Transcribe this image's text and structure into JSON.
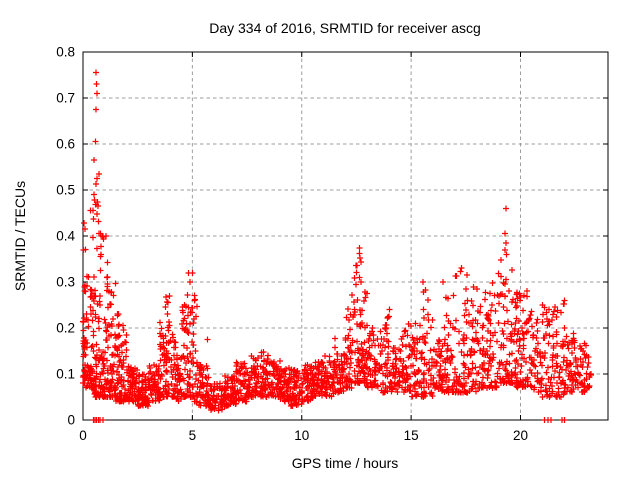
{
  "page": {
    "title": "Day 334 of 2016, SRMTID for receiver ascg"
  },
  "chart_data": {
    "type": "scatter",
    "title": "Day 334 of 2016, SRMTID for receiver ascg",
    "xlabel": "GPS time / hours",
    "ylabel": "SRMTID / TECUs",
    "xlim": [
      0,
      24
    ],
    "ylim": [
      0,
      0.8
    ],
    "xticks": [
      0,
      5,
      10,
      15,
      20
    ],
    "xtick_labels": [
      "0",
      "5",
      "10",
      "15",
      "20"
    ],
    "yticks": [
      0,
      0.1,
      0.2,
      0.3,
      0.4,
      0.5,
      0.6,
      0.7,
      0.8
    ],
    "ytick_labels": [
      "0",
      "0.1",
      "0.2",
      "0.3",
      "0.4",
      "0.5",
      "0.6",
      "0.7",
      "0.8"
    ],
    "grid": "dashed",
    "legend": "none",
    "series_name": "SRMTID",
    "marker": {
      "shape": "plus",
      "color": "#ff0000",
      "size": 7
    },
    "colors": {
      "axis": "#000000",
      "grid": "#9e9e9e",
      "background": "#ffffff",
      "text": "#000000"
    },
    "density_bins": [
      [
        0.0,
        0.12,
        0.08,
        0.43,
        35
      ],
      [
        0.12,
        0.3,
        0.07,
        0.35,
        25
      ],
      [
        0.3,
        0.5,
        0.07,
        0.47,
        40
      ],
      [
        0.5,
        0.75,
        0.05,
        0.48,
        50
      ],
      [
        0.75,
        1.0,
        0.05,
        0.42,
        45
      ],
      [
        1.0,
        1.25,
        0.05,
        0.35,
        40
      ],
      [
        1.25,
        1.5,
        0.05,
        0.3,
        40
      ],
      [
        1.5,
        1.75,
        0.04,
        0.25,
        40
      ],
      [
        1.75,
        2.0,
        0.04,
        0.22,
        35
      ],
      [
        2.0,
        2.5,
        0.04,
        0.12,
        60
      ],
      [
        2.5,
        3.0,
        0.03,
        0.1,
        60
      ],
      [
        3.0,
        3.5,
        0.04,
        0.12,
        55
      ],
      [
        3.5,
        3.75,
        0.05,
        0.22,
        30
      ],
      [
        3.75,
        4.0,
        0.05,
        0.27,
        35
      ],
      [
        4.0,
        4.25,
        0.05,
        0.2,
        30
      ],
      [
        4.25,
        4.5,
        0.04,
        0.15,
        30
      ],
      [
        4.5,
        4.75,
        0.05,
        0.25,
        30
      ],
      [
        4.75,
        5.0,
        0.05,
        0.32,
        35
      ],
      [
        5.0,
        5.25,
        0.04,
        0.28,
        30
      ],
      [
        5.25,
        5.75,
        0.03,
        0.12,
        50
      ],
      [
        5.75,
        6.5,
        0.02,
        0.08,
        70
      ],
      [
        6.5,
        7.0,
        0.03,
        0.1,
        55
      ],
      [
        7.0,
        7.5,
        0.04,
        0.13,
        55
      ],
      [
        7.5,
        8.0,
        0.05,
        0.14,
        55
      ],
      [
        8.0,
        8.5,
        0.05,
        0.15,
        55
      ],
      [
        8.5,
        9.0,
        0.05,
        0.13,
        55
      ],
      [
        9.0,
        9.5,
        0.04,
        0.12,
        55
      ],
      [
        9.5,
        10.0,
        0.03,
        0.11,
        55
      ],
      [
        10.0,
        10.5,
        0.04,
        0.12,
        55
      ],
      [
        10.5,
        11.0,
        0.05,
        0.13,
        55
      ],
      [
        11.0,
        11.5,
        0.05,
        0.15,
        50
      ],
      [
        11.5,
        12.0,
        0.06,
        0.18,
        50
      ],
      [
        12.0,
        12.4,
        0.07,
        0.28,
        45
      ],
      [
        12.4,
        12.75,
        0.08,
        0.37,
        45
      ],
      [
        12.75,
        13.0,
        0.08,
        0.3,
        35
      ],
      [
        13.0,
        13.5,
        0.07,
        0.2,
        45
      ],
      [
        13.5,
        14.0,
        0.06,
        0.24,
        45
      ],
      [
        14.0,
        14.5,
        0.06,
        0.16,
        45
      ],
      [
        14.5,
        15.0,
        0.06,
        0.21,
        45
      ],
      [
        15.0,
        15.5,
        0.05,
        0.18,
        45
      ],
      [
        15.5,
        16.0,
        0.05,
        0.3,
        45
      ],
      [
        16.0,
        16.5,
        0.06,
        0.2,
        45
      ],
      [
        16.5,
        17.0,
        0.06,
        0.28,
        45
      ],
      [
        17.0,
        17.5,
        0.06,
        0.33,
        45
      ],
      [
        17.5,
        18.0,
        0.06,
        0.3,
        45
      ],
      [
        18.0,
        18.5,
        0.07,
        0.28,
        45
      ],
      [
        18.5,
        19.0,
        0.07,
        0.3,
        45
      ],
      [
        19.0,
        19.3,
        0.08,
        0.4,
        35
      ],
      [
        19.3,
        19.7,
        0.08,
        0.33,
        40
      ],
      [
        19.7,
        20.0,
        0.07,
        0.28,
        40
      ],
      [
        20.0,
        20.5,
        0.07,
        0.28,
        45
      ],
      [
        20.5,
        21.0,
        0.06,
        0.22,
        40
      ],
      [
        21.0,
        21.5,
        0.05,
        0.25,
        40
      ],
      [
        21.5,
        22.0,
        0.05,
        0.26,
        45
      ],
      [
        22.0,
        22.5,
        0.06,
        0.2,
        45
      ],
      [
        22.5,
        23.0,
        0.06,
        0.17,
        40
      ],
      [
        23.0,
        23.25,
        0.07,
        0.14,
        15
      ]
    ],
    "outlier_points": [
      [
        0.6,
        0.755
      ],
      [
        0.62,
        0.73
      ],
      [
        0.63,
        0.71
      ],
      [
        0.6,
        0.675
      ],
      [
        0.56,
        0.605
      ],
      [
        0.51,
        0.565
      ],
      [
        0.73,
        0.535
      ],
      [
        0.64,
        0.525
      ],
      [
        0.6,
        0.513
      ],
      [
        0.5,
        0.49
      ],
      [
        0.53,
        0.478
      ],
      [
        0.56,
        0.468
      ],
      [
        0.63,
        0.448
      ],
      [
        0.05,
        0.428
      ],
      [
        0.1,
        0.415
      ],
      [
        0.87,
        0.4
      ],
      [
        1.05,
        0.4
      ],
      [
        0.45,
        0.455
      ],
      [
        19.33,
        0.46
      ],
      [
        19.3,
        0.405
      ],
      [
        19.34,
        0.385
      ],
      [
        19.36,
        0.36
      ],
      [
        12.65,
        0.374
      ],
      [
        12.63,
        0.362
      ],
      [
        12.66,
        0.352
      ],
      [
        12.7,
        0.344
      ],
      [
        12.64,
        0.31
      ],
      [
        12.71,
        0.3
      ],
      [
        15.55,
        0.3
      ],
      [
        16.45,
        0.3
      ],
      [
        17.3,
        0.33
      ],
      [
        17.55,
        0.315
      ],
      [
        18.0,
        0.285
      ],
      [
        5.0,
        0.32
      ],
      [
        4.9,
        0.3
      ],
      [
        3.95,
        0.27
      ],
      [
        14.0,
        0.24
      ],
      [
        13.98,
        0.225
      ],
      [
        15.2,
        0.21
      ],
      [
        21.0,
        0.25
      ],
      [
        20.3,
        0.28
      ],
      [
        22.0,
        0.26
      ],
      [
        5.7,
        0.175
      ],
      [
        15.4,
        0.205
      ]
    ],
    "zero_points": [
      0.48,
      0.55,
      0.62,
      0.7,
      0.78,
      0.92,
      21.1,
      21.25,
      21.4,
      21.9,
      22.02
    ]
  }
}
